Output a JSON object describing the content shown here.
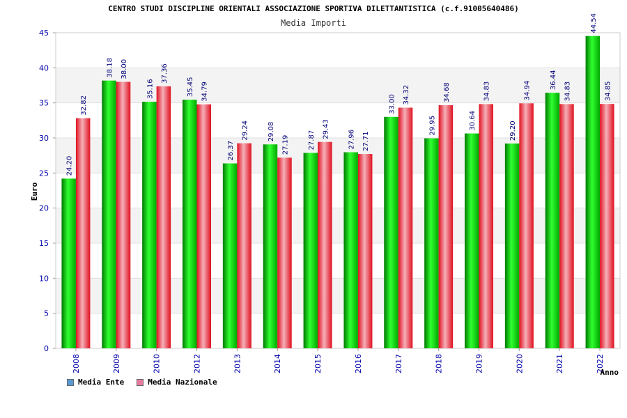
{
  "chart_data": {
    "type": "bar",
    "title": "CENTRO STUDI DISCIPLINE ORIENTALI ASSOCIAZIONE SPORTIVA DILETTANTISTICA (c.f.91005640486)",
    "subtitle": "Media Importi",
    "xlabel": "Anno",
    "ylabel": "Euro",
    "ylim": [
      0,
      45
    ],
    "yticks": [
      "0",
      "5",
      "10",
      "15",
      "20",
      "25",
      "30",
      "35",
      "40",
      "45"
    ],
    "categories": [
      "2008",
      "2009",
      "2010",
      "2012",
      "2013",
      "2014",
      "2015",
      "2016",
      "2017",
      "2018",
      "2019",
      "2020",
      "2021",
      "2022"
    ],
    "series": [
      {
        "name": "Media Ente",
        "values": [
          24.2,
          38.18,
          35.16,
          35.45,
          26.37,
          29.08,
          27.87,
          27.96,
          33.0,
          29.95,
          30.64,
          29.2,
          36.44,
          44.54
        ],
        "labels": [
          "24.20",
          "38.18",
          "35.16",
          "35.45",
          "26.37",
          "29.08",
          "27.87",
          "27.96",
          "33.00",
          "29.95",
          "30.64",
          "29.20",
          "36.44",
          "44.54"
        ],
        "color": "#00c000"
      },
      {
        "name": "Media Nazionale",
        "values": [
          32.82,
          38.0,
          37.36,
          34.79,
          29.24,
          27.19,
          29.43,
          27.71,
          34.32,
          34.68,
          34.83,
          34.94,
          34.83,
          34.85
        ],
        "labels": [
          "32.82",
          "38.00",
          "37.36",
          "34.79",
          "29.24",
          "27.19",
          "29.43",
          "27.71",
          "34.32",
          "34.68",
          "34.83",
          "34.94",
          "34.83",
          "34.85"
        ],
        "color": "#e8202c"
      }
    ],
    "grid": true,
    "legend_position": "bottom-left",
    "legend_colors": [
      "#5b9bd5",
      "#e87aa0"
    ]
  }
}
